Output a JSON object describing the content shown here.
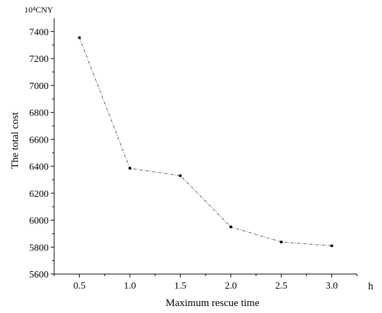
{
  "chart_data": {
    "type": "line",
    "title": "",
    "xlabel": "Maximum rescue time",
    "x_unit": "h",
    "ylabel": "The total cost",
    "y_unit": "10⁴CNY",
    "x": [
      0.5,
      1.0,
      1.5,
      2.0,
      2.5,
      3.0
    ],
    "x_tick_labels": [
      "0.5",
      "1.0",
      "1.5",
      "2.0",
      "2.5",
      "3.0"
    ],
    "xlim": [
      0.25,
      3.25
    ],
    "ylim": [
      5600,
      7500
    ],
    "y_ticks": [
      5600,
      5800,
      6000,
      6200,
      6400,
      6600,
      6800,
      7000,
      7200,
      7400
    ],
    "series": [
      {
        "values": [
          7355,
          6385,
          6330,
          5950,
          5838,
          5810
        ]
      }
    ],
    "grid": false,
    "legend": "none",
    "line_color": "#555555",
    "marker_color": "#000000"
  }
}
